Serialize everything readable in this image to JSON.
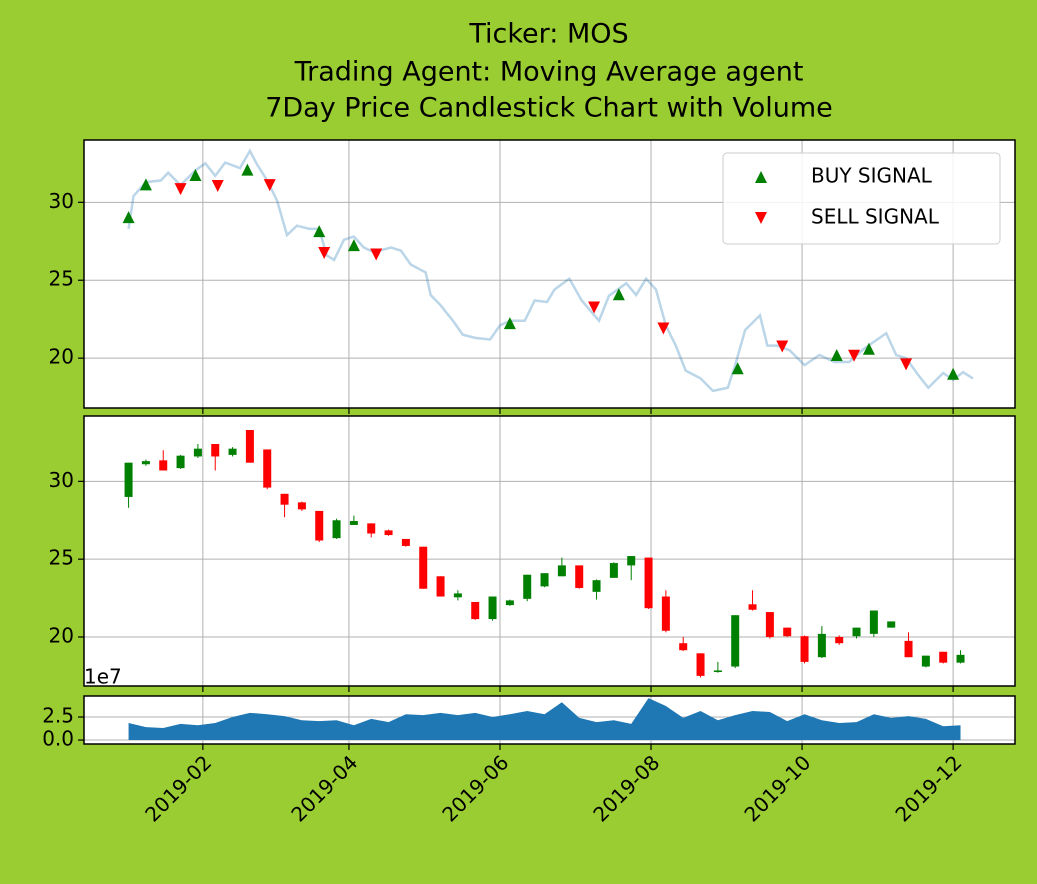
{
  "chart_data": [
    {
      "type": "line",
      "title": [
        "Ticker: MOS",
        "Trading Agent: Moving Average agent",
        "7Day Price Candlestick Chart with Volume"
      ],
      "ylim": [
        16.8,
        34
      ],
      "yticks": [
        20,
        25,
        30
      ],
      "grid": true,
      "legend": "upper right",
      "series": [
        {
          "color": "#1f77b4",
          "alpha": 0.3,
          "x": [
            1,
            3,
            8,
            14,
            17,
            22,
            28,
            32,
            36,
            40,
            46,
            50,
            53,
            57,
            61,
            65,
            69,
            74,
            78,
            81,
            84,
            88,
            92,
            96,
            100,
            107,
            111,
            115,
            121,
            123,
            127,
            132,
            136,
            141,
            147,
            151,
            155,
            161,
            165,
            170,
            173,
            179,
            184,
            191,
            195,
            202,
            206,
            210,
            214,
            218,
            222,
            226,
            232,
            237,
            243,
            246,
            250,
            256,
            259,
            263,
            268,
            274,
            280,
            286,
            292,
            298,
            307,
            311,
            315,
            320,
            324,
            330,
            334,
            338,
            342
          ],
          "values": [
            28.3,
            30.4,
            31.3,
            31.4,
            31.9,
            31.1,
            32.05,
            32.5,
            31.7,
            32.55,
            32.2,
            33.3,
            32.4,
            31.4,
            30.1,
            27.9,
            28.5,
            28.3,
            28.3,
            26.6,
            26.3,
            27.6,
            27.8,
            27.1,
            26.8,
            27.1,
            26.9,
            26.0,
            25.5,
            24.05,
            23.4,
            22.4,
            21.5,
            21.3,
            21.2,
            22.1,
            22.4,
            22.4,
            23.7,
            23.6,
            24.4,
            25.1,
            23.7,
            22.4,
            24.0,
            24.8,
            24.05,
            25.1,
            24.4,
            22.1,
            20.8,
            19.2,
            18.7,
            17.9,
            18.1,
            19.55,
            21.8,
            22.75,
            20.8,
            20.8,
            20.5,
            19.55,
            20.2,
            19.75,
            19.75,
            20.6,
            21.6,
            20.2,
            20.0,
            18.9,
            18.1,
            19.05,
            18.6,
            19.1,
            18.7
          ]
        },
        {
          "name": "BUY SIGNAL",
          "marker": "^",
          "color": "#008000",
          "x": [
            1,
            8,
            28,
            49,
            78,
            92,
            155,
            199,
            247,
            287,
            300,
            334
          ],
          "values": [
            29.05,
            31.15,
            31.75,
            32.1,
            28.15,
            27.25,
            22.25,
            24.1,
            19.35,
            20.2,
            20.6,
            19.0
          ]
        },
        {
          "name": "SELL SIGNAL",
          "marker": "v",
          "color": "#ff0000",
          "x": [
            22,
            37,
            58,
            80,
            101,
            189,
            217,
            265,
            294,
            315
          ],
          "values": [
            30.85,
            31.05,
            31.1,
            26.75,
            26.65,
            23.25,
            21.9,
            20.75,
            20.15,
            19.6
          ]
        }
      ]
    },
    {
      "type": "candlestick",
      "ylim": [
        16.85,
        34.2
      ],
      "yticks": [
        20,
        25,
        30
      ],
      "grid": true,
      "up_color": "#008000",
      "down_color": "#ff0000",
      "x": [
        1,
        8,
        15,
        22,
        29,
        36,
        43,
        50,
        57,
        64,
        71,
        78,
        85,
        92,
        99,
        106,
        113,
        120,
        127,
        134,
        141,
        148,
        155,
        162,
        169,
        176,
        183,
        190,
        197,
        204,
        211,
        218,
        225,
        232,
        239,
        246,
        253,
        260,
        267,
        274,
        281,
        288,
        295,
        302,
        309,
        316,
        323,
        330,
        337
      ],
      "open": [
        29.0,
        31.1,
        31.35,
        30.85,
        31.6,
        32.4,
        31.7,
        33.3,
        32.05,
        29.2,
        28.65,
        28.1,
        26.35,
        27.2,
        27.3,
        26.85,
        26.3,
        25.8,
        23.9,
        22.55,
        22.25,
        21.15,
        22.05,
        22.45,
        23.25,
        23.9,
        24.6,
        22.9,
        23.8,
        24.6,
        25.1,
        22.6,
        19.6,
        18.95,
        17.75,
        18.1,
        22.1,
        21.6,
        20.6,
        20.05,
        18.7,
        20.0,
        20.05,
        20.2,
        20.6,
        19.75,
        18.1,
        19.05,
        18.35
      ],
      "high": [
        31.2,
        31.4,
        32.0,
        31.7,
        32.4,
        32.4,
        32.2,
        33.3,
        32.05,
        29.2,
        28.7,
        28.1,
        27.6,
        27.8,
        27.3,
        26.9,
        26.3,
        25.8,
        23.9,
        23.0,
        22.25,
        22.6,
        22.4,
        24.0,
        24.1,
        25.1,
        24.6,
        23.7,
        24.8,
        25.2,
        25.1,
        23.0,
        20.0,
        18.95,
        18.4,
        21.4,
        23.0,
        21.6,
        20.6,
        20.1,
        20.7,
        20.1,
        20.6,
        21.7,
        21.0,
        20.3,
        18.8,
        19.05,
        19.15
      ],
      "low": [
        28.3,
        31.0,
        30.7,
        30.8,
        31.5,
        30.7,
        31.6,
        31.2,
        29.5,
        27.7,
        28.1,
        26.1,
        26.3,
        27.2,
        26.4,
        26.5,
        25.8,
        23.1,
        22.6,
        22.35,
        21.1,
        21.05,
        22.0,
        22.3,
        23.2,
        23.9,
        23.1,
        22.4,
        23.8,
        23.65,
        21.8,
        20.3,
        19.1,
        17.4,
        17.7,
        18.0,
        21.7,
        19.9,
        20.0,
        18.3,
        18.65,
        19.5,
        19.9,
        20.0,
        20.6,
        18.7,
        18.05,
        18.3,
        18.3
      ],
      "close": [
        31.2,
        31.3,
        30.7,
        31.65,
        32.1,
        31.6,
        32.1,
        31.2,
        29.6,
        28.5,
        28.2,
        26.2,
        27.5,
        27.45,
        26.65,
        26.55,
        25.85,
        23.1,
        22.6,
        22.8,
        21.15,
        22.6,
        22.35,
        24.0,
        24.1,
        24.6,
        23.15,
        23.65,
        24.75,
        25.2,
        21.85,
        20.4,
        19.15,
        17.5,
        17.85,
        21.4,
        21.75,
        20.0,
        20.05,
        18.4,
        20.2,
        19.6,
        20.6,
        21.7,
        21.0,
        18.7,
        18.8,
        18.35,
        18.85
      ]
    },
    {
      "type": "area",
      "color": "#1f77b4",
      "offset_label": "1e7",
      "ylim": [
        -0.43,
        4.78
      ],
      "yticks": [
        {
          "value": 0,
          "label": "0.0"
        },
        2.5
      ],
      "grid": true,
      "xlim": [
        -17,
        359
      ],
      "xticks": [
        {
          "value": 31,
          "label": "2019-02"
        },
        {
          "value": 90,
          "label": "2019-04"
        },
        {
          "value": 151,
          "label": "2019-06"
        },
        {
          "value": 212,
          "label": "2019-08"
        },
        {
          "value": 273,
          "label": "2019-10"
        },
        {
          "value": 334,
          "label": "2019-12"
        }
      ],
      "x": [
        1,
        8,
        15,
        22,
        29,
        36,
        43,
        50,
        57,
        64,
        71,
        78,
        85,
        92,
        99,
        106,
        113,
        120,
        127,
        134,
        141,
        148,
        155,
        162,
        169,
        176,
        183,
        190,
        197,
        204,
        211,
        218,
        225,
        232,
        239,
        246,
        253,
        260,
        267,
        274,
        281,
        288,
        295,
        302,
        309,
        316,
        323,
        330,
        337
      ],
      "values": [
        1.85,
        1.4,
        1.3,
        1.75,
        1.6,
        1.85,
        2.5,
        2.95,
        2.8,
        2.6,
        2.15,
        2.05,
        2.15,
        1.6,
        2.3,
        1.95,
        2.8,
        2.7,
        2.95,
        2.7,
        2.95,
        2.5,
        2.8,
        3.15,
        2.8,
        4.1,
        2.4,
        1.95,
        2.15,
        1.75,
        4.55,
        3.7,
        2.4,
        3.15,
        2.15,
        2.7,
        3.15,
        3.05,
        2.05,
        2.8,
        2.15,
        1.85,
        1.95,
        2.8,
        2.4,
        2.6,
        2.3,
        1.5,
        1.6
      ]
    }
  ]
}
